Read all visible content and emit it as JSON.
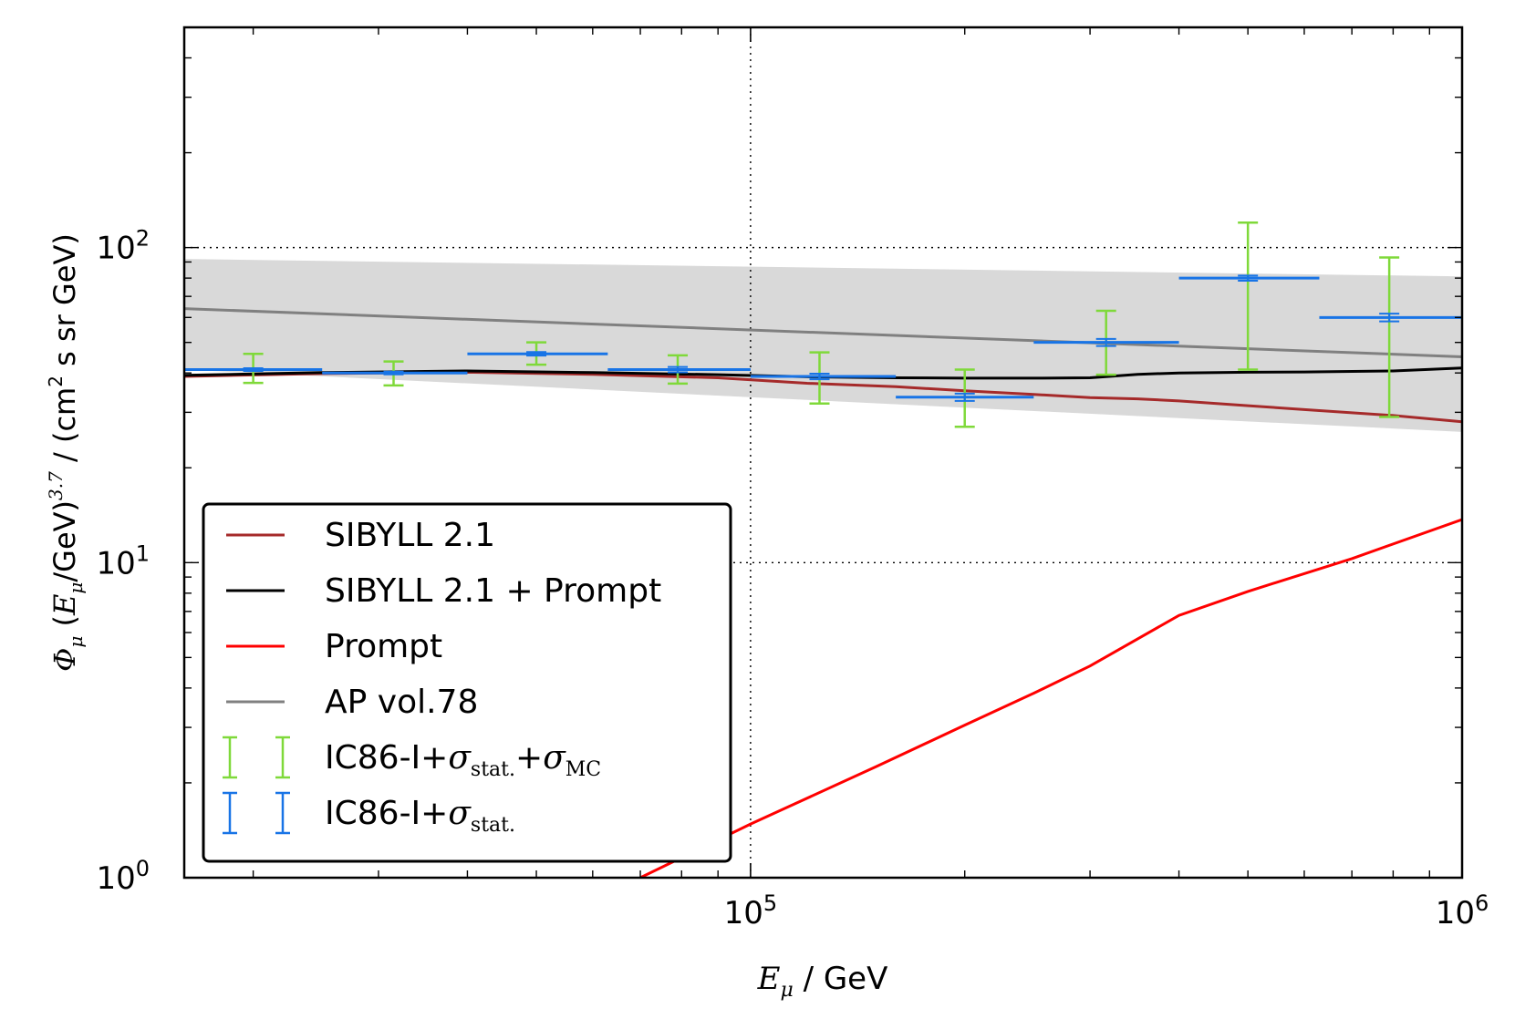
{
  "chart_data": {
    "type": "line",
    "xscale": "log",
    "yscale": "log",
    "xlim": [
      16000,
      1000000
    ],
    "ylim": [
      1,
      500
    ],
    "grid": "major, dotted",
    "legend_position": "lower-left",
    "xlabel": {
      "var": "E",
      "sub": "μ",
      "unit": " / GeV"
    },
    "ylabel": {
      "phi": "Φ",
      "phi_sub": "μ",
      "paren_open": " (",
      "var": "E",
      "var_sub": "μ",
      "mid": "/GeV)",
      "exp": "3.7",
      "unit": " / (cm",
      "unit_exp": "2",
      "unit_end": "  s sr GeV)"
    },
    "x_ticks": [
      {
        "value": 100000,
        "base": "10",
        "exp": "5"
      },
      {
        "value": 1000000,
        "base": "10",
        "exp": "6"
      }
    ],
    "y_ticks": [
      {
        "value": 1,
        "base": "10",
        "exp": "0"
      },
      {
        "value": 10,
        "base": "10",
        "exp": "1"
      },
      {
        "value": 100,
        "base": "10",
        "exp": "2"
      }
    ],
    "band": {
      "color": "#d9d9d9",
      "x": [
        16000,
        1000000
      ],
      "upper": [
        92,
        81
      ],
      "lower": [
        41,
        26
      ]
    },
    "series": [
      {
        "name": "AP vol.78",
        "color": "#808080",
        "x": [
          16000,
          1000000
        ],
        "y": [
          64,
          45
        ]
      },
      {
        "name": "SIBYLL 2.1",
        "color": "#a52a2a",
        "x": [
          16000,
          25000,
          40000,
          60000,
          90000,
          120000,
          160000,
          200000,
          250000,
          300000,
          350000,
          400000,
          500000,
          600000,
          800000,
          1000000
        ],
        "y": [
          39,
          39.8,
          40.2,
          39.6,
          38.6,
          37.1,
          36.2,
          35.1,
          34.2,
          33.4,
          33.1,
          32.6,
          31.5,
          30.6,
          29.3,
          28
        ]
      },
      {
        "name": "SIBYLL 2.1 + Prompt",
        "color": "#000000",
        "x": [
          16000,
          25000,
          40000,
          60000,
          90000,
          120000,
          160000,
          200000,
          250000,
          300000,
          350000,
          400000,
          500000,
          600000,
          800000,
          1000000
        ],
        "y": [
          39.3,
          40.1,
          40.6,
          40.1,
          39.5,
          38.9,
          38.6,
          38.5,
          38.5,
          38.6,
          39.6,
          40,
          40.2,
          40.3,
          40.6,
          41.5
        ]
      },
      {
        "name": "Prompt",
        "color": "#ff0000",
        "x": [
          70000,
          100000,
          150000,
          200000,
          250000,
          300000,
          400000,
          500000,
          700000,
          1000000
        ],
        "y": [
          1,
          1.48,
          2.25,
          3.05,
          3.85,
          4.7,
          6.8,
          8.1,
          10.3,
          13.7
        ]
      }
    ],
    "errorbars": [
      {
        "name": "IC86-I+σstat.+σMC",
        "color": "#7fd93a",
        "points": [
          {
            "x": 20000,
            "y": 41,
            "ylo": 37.2,
            "yhi": 46
          },
          {
            "x": 31500,
            "y": 40,
            "ylo": 36.5,
            "yhi": 43.5
          },
          {
            "x": 50000,
            "y": 46,
            "ylo": 42.5,
            "yhi": 50
          },
          {
            "x": 79000,
            "y": 41,
            "ylo": 37,
            "yhi": 45.5
          },
          {
            "x": 125000,
            "y": 39,
            "ylo": 32,
            "yhi": 46.5
          },
          {
            "x": 200000,
            "y": 33.5,
            "ylo": 27,
            "yhi": 41
          },
          {
            "x": 316000,
            "y": 50,
            "ylo": 39.5,
            "yhi": 63
          },
          {
            "x": 500000,
            "y": 80,
            "ylo": 41,
            "yhi": 120
          },
          {
            "x": 790000,
            "y": 60,
            "ylo": 29,
            "yhi": 93
          }
        ]
      },
      {
        "name": "IC86-I+σstat.",
        "color": "#1874e6",
        "points": [
          {
            "x": 20000,
            "y": 41,
            "xlo": 16000,
            "xhi": 25000,
            "ylo": 40.6,
            "yhi": 41.4
          },
          {
            "x": 31500,
            "y": 40,
            "xlo": 25000,
            "xhi": 40000,
            "ylo": 39.6,
            "yhi": 40.4
          },
          {
            "x": 50000,
            "y": 46,
            "xlo": 40000,
            "xhi": 63000,
            "ylo": 45.4,
            "yhi": 46.6
          },
          {
            "x": 79000,
            "y": 41,
            "xlo": 63000,
            "xhi": 100000,
            "ylo": 40.2,
            "yhi": 41.8
          },
          {
            "x": 125000,
            "y": 39,
            "xlo": 100000,
            "xhi": 160000,
            "ylo": 38.2,
            "yhi": 39.8
          },
          {
            "x": 200000,
            "y": 33.5,
            "xlo": 160000,
            "xhi": 250000,
            "ylo": 32.6,
            "yhi": 34.4
          },
          {
            "x": 316000,
            "y": 50,
            "xlo": 250000,
            "xhi": 400000,
            "ylo": 48.7,
            "yhi": 51.3
          },
          {
            "x": 500000,
            "y": 80,
            "xlo": 400000,
            "xhi": 630000,
            "ylo": 78.5,
            "yhi": 81.5
          },
          {
            "x": 790000,
            "y": 60,
            "xlo": 630000,
            "xhi": 1000000,
            "ylo": 58.3,
            "yhi": 61.7
          }
        ]
      }
    ],
    "legend": [
      {
        "kind": "line",
        "color": "#a52a2a",
        "label": "SIBYLL 2.1"
      },
      {
        "kind": "line",
        "color": "#000000",
        "label": "SIBYLL 2.1 + Prompt"
      },
      {
        "kind": "line",
        "color": "#ff0000",
        "label": "Prompt"
      },
      {
        "kind": "line",
        "color": "#808080",
        "label": "AP vol.78"
      },
      {
        "kind": "errorbar",
        "color": "#7fd93a",
        "label_text": "IC86-I+",
        "label_sym": "σ",
        "label_sub": "stat.",
        "label_plus": "+",
        "label_sym2": "σ",
        "label_sub2": "MC"
      },
      {
        "kind": "errorbar",
        "color": "#1874e6",
        "label_text": "IC86-I+",
        "label_sym": "σ",
        "label_sub": "stat."
      }
    ]
  }
}
